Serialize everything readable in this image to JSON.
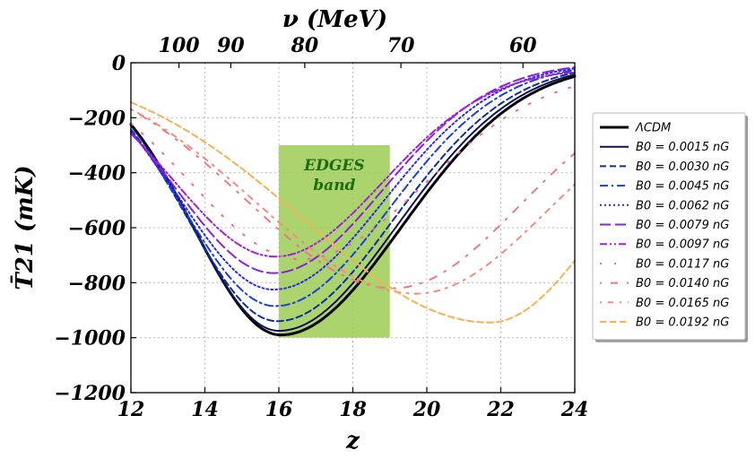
{
  "chart_data": {
    "type": "line",
    "xlabel": "z",
    "ylabel": "T̄21 (mK)",
    "top_axis_label": "ν (MeV)",
    "xlim": [
      12,
      24
    ],
    "ylim": [
      -1200,
      0
    ],
    "x_ticks": [
      "12",
      "14",
      "16",
      "18",
      "20",
      "22",
      "24"
    ],
    "y_ticks": [
      "0",
      "−200",
      "−400",
      "−600",
      "−800",
      "−1000",
      "−1200"
    ],
    "top_ticks": [
      {
        "label": "100",
        "z": 13.3
      },
      {
        "label": "90",
        "z": 14.7
      },
      {
        "label": "80",
        "z": 16.7
      },
      {
        "label": "70",
        "z": 19.3
      },
      {
        "label": "60",
        "z": 22.6
      }
    ],
    "grid": true,
    "band": {
      "label_line1": "EDGES",
      "label_line2": "band",
      "x": [
        16,
        19
      ],
      "y": [
        -1000,
        -300
      ],
      "color": "#9ccc55"
    },
    "legend_position": "right",
    "series": [
      {
        "name": "ΛCDM",
        "color": "#000000",
        "dash": "solid",
        "width": 3,
        "min_z": 16.05,
        "min_T": -990,
        "w_left": 2.35,
        "w_right": 3.25,
        "T_high": 0
      },
      {
        "name": "B0 = 0.0015 nG",
        "color": "#10105a",
        "dash": "solid",
        "width": 2,
        "min_z": 16.0,
        "min_T": -975,
        "w_left": 2.35,
        "w_right": 3.2,
        "T_high": 0
      },
      {
        "name": "B0 = 0.0030 nG",
        "color": "#0a2fa0",
        "dash": "dashed",
        "width": 2,
        "min_z": 15.95,
        "min_T": -940,
        "w_left": 2.4,
        "w_right": 3.15,
        "T_high": 0
      },
      {
        "name": "B0 = 0.0045 nG",
        "color": "#1a3fe0",
        "dash": "dashdot",
        "width": 2,
        "min_z": 15.9,
        "min_T": -885,
        "w_left": 2.45,
        "w_right": 3.05,
        "T_high": 0
      },
      {
        "name": "B0 = 0.0062 nG",
        "color": "#2a2aee",
        "dash": "dotted",
        "width": 2,
        "min_z": 15.85,
        "min_T": -825,
        "w_left": 2.5,
        "w_right": 3.0,
        "T_high": 0
      },
      {
        "name": "B0 = 0.0079 nG",
        "color": "#8a22dd",
        "dash": "longdash",
        "width": 2,
        "min_z": 15.85,
        "min_T": -765,
        "w_left": 2.6,
        "w_right": 2.95,
        "T_high": 0
      },
      {
        "name": "B0 = 0.0097 nG",
        "color": "#a020e0",
        "dash": "dashdotdot",
        "width": 2,
        "min_z": 15.9,
        "min_T": -705,
        "w_left": 2.75,
        "w_right": 2.9,
        "T_high": -20
      },
      {
        "name": "B0 = 0.0117 nG",
        "color": "#f06a9a",
        "dash": "sparsedot",
        "width": 2,
        "min_z": 16.6,
        "min_T": -715,
        "w_left": 3.0,
        "w_right": 3.3,
        "T_high": -30
      },
      {
        "name": "B0 = 0.0140 nG",
        "color": "#f07585",
        "dash": "sparsedashdot",
        "width": 2,
        "min_z": 19.1,
        "min_T": -820,
        "w_left": 4.0,
        "w_right": 3.4,
        "T_high": -60
      },
      {
        "name": "B0 = 0.0165 nG",
        "color": "#f48b78",
        "dash": "sparsedashdot2",
        "width": 2,
        "min_z": 19.7,
        "min_T": -840,
        "w_left": 4.3,
        "w_right": 3.6,
        "T_high": -60
      },
      {
        "name": "B0 = 0.0192 nG",
        "color": "#f8b050",
        "dash": "dashed",
        "width": 2,
        "min_z": 21.7,
        "min_T": -945,
        "w_left": 5.0,
        "w_right": 3.0,
        "T_high": -60
      }
    ]
  }
}
